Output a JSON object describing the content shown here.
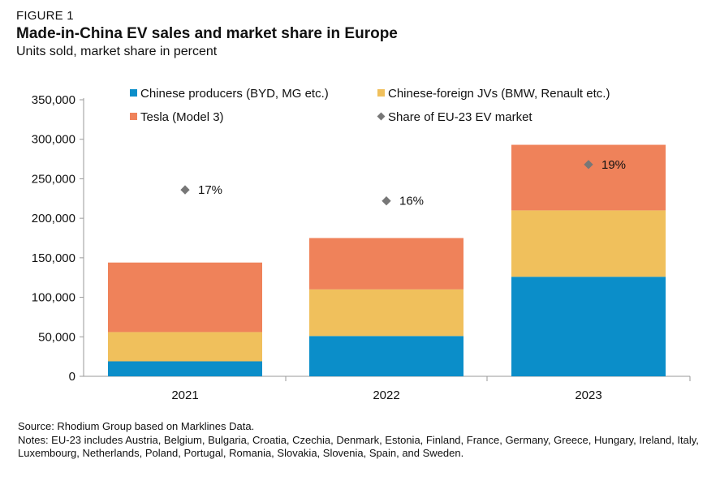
{
  "header": {
    "figure_label": "FIGURE 1",
    "title": "Made-in-China EV sales and market share in Europe",
    "subtitle": "Units sold, market share in percent"
  },
  "footer": {
    "source": "Source: Rhodium Group based on Marklines Data.",
    "notes": "Notes: EU-23 includes Austria, Belgium, Bulgaria, Croatia, Czechia, Denmark, Estonia, Finland, France, Germany, Greece, Hungary, Ireland, Italy, Luxembourg, Netherlands, Poland, Portugal, Romania, Slovakia, Slovenia, Spain, and Sweden."
  },
  "chart_data": {
    "type": "bar",
    "stacked": true,
    "categories": [
      "2021",
      "2022",
      "2023"
    ],
    "series": [
      {
        "name": "Chinese producers (BYD, MG etc.)",
        "values": [
          19000,
          51000,
          126000
        ],
        "color": "#0b8ec9"
      },
      {
        "name": "Chinese-foreign JVs (BMW, Renault etc.)",
        "values": [
          37000,
          59000,
          84000
        ],
        "color": "#f0c05c"
      },
      {
        "name": "Tesla (Model 3)",
        "values": [
          88000,
          65000,
          83000
        ],
        "color": "#ef825a"
      }
    ],
    "share": {
      "name": "Share of EU-23 EV market",
      "values": [
        17,
        16,
        19
      ],
      "labels": [
        "17%",
        "16%",
        "19%"
      ],
      "positions_y": [
        236000,
        222000,
        268000
      ],
      "color": "#777777"
    },
    "ylim": [
      0,
      350000
    ],
    "yticks": [
      0,
      50000,
      100000,
      150000,
      200000,
      250000,
      300000,
      350000
    ],
    "ytick_labels": [
      "0",
      "50,000",
      "100,000",
      "150,000",
      "200,000",
      "250,000",
      "300,000",
      "350,000"
    ],
    "legend_position": "top",
    "grid": false
  }
}
